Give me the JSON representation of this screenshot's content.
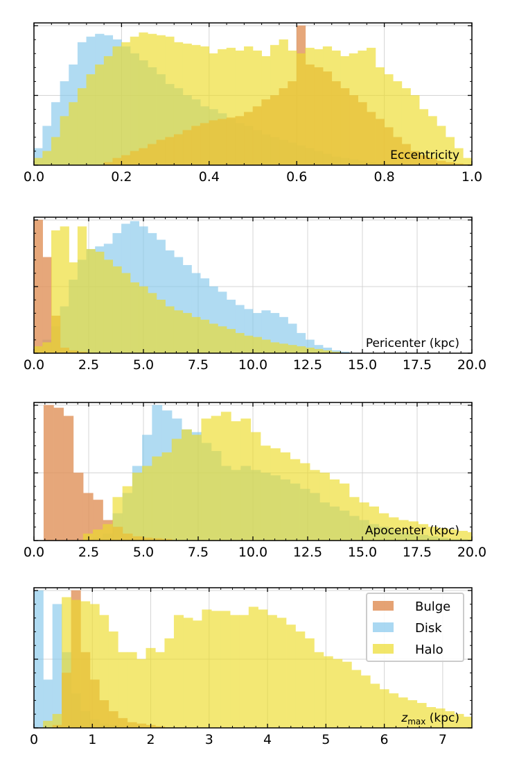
{
  "colors": {
    "Bulge": "#e1925a",
    "Disk": "#86c8ec",
    "Halo": "#eddc2b"
  },
  "legend": {
    "placement": "top-right",
    "entries": [
      "Bulge",
      "Disk",
      "Halo"
    ]
  },
  "chart_data": [
    {
      "type": "bar",
      "panel": "eccentricity",
      "annotation": "Eccentricity",
      "xlim": [
        0.0,
        1.0
      ],
      "xticks": [
        "0.0",
        "0.2",
        "0.4",
        "0.6",
        "0.8",
        "1.0"
      ],
      "xtick_values": [
        0,
        0.2,
        0.4,
        0.6,
        0.8,
        1.0
      ],
      "ymax": 1.0,
      "grid": true,
      "bin_start": 0.0,
      "bin_width": 0.02,
      "series": [
        {
          "name": "Bulge",
          "values": [
            0,
            0,
            0,
            0,
            0,
            0,
            0,
            0,
            0.02,
            0.05,
            0.07,
            0.1,
            0.12,
            0.15,
            0.18,
            0.2,
            0.22,
            0.25,
            0.28,
            0.3,
            0.32,
            0.33,
            0.34,
            0.35,
            0.38,
            0.42,
            0.47,
            0.5,
            0.55,
            0.6,
            1.0,
            0.72,
            0.7,
            0.67,
            0.6,
            0.55,
            0.5,
            0.45,
            0.38,
            0.33,
            0.27,
            0.2,
            0.15,
            0.1,
            0.07,
            0.05,
            0.03,
            0.02,
            0.01,
            0.005
          ]
        },
        {
          "name": "Disk",
          "values": [
            0.12,
            0.28,
            0.45,
            0.6,
            0.72,
            0.88,
            0.92,
            0.94,
            0.93,
            0.9,
            0.85,
            0.8,
            0.75,
            0.7,
            0.65,
            0.58,
            0.55,
            0.5,
            0.47,
            0.42,
            0.4,
            0.37,
            0.33,
            0.3,
            0.28,
            0.25,
            0.22,
            0.2,
            0.18,
            0.16,
            0.14,
            0.12,
            0.1,
            0.08,
            0.06,
            0.05,
            0.04,
            0.03,
            0.02,
            0.015,
            0.01,
            0.01,
            0.008,
            0.005,
            0.004,
            0.003,
            0.002,
            0.001,
            0,
            0
          ]
        },
        {
          "name": "Halo",
          "values": [
            0.05,
            0.1,
            0.2,
            0.35,
            0.45,
            0.55,
            0.65,
            0.72,
            0.78,
            0.85,
            0.88,
            0.92,
            0.95,
            0.94,
            0.93,
            0.92,
            0.88,
            0.87,
            0.86,
            0.85,
            0.8,
            0.83,
            0.84,
            0.82,
            0.85,
            0.82,
            0.78,
            0.86,
            0.9,
            0.82,
            0.8,
            0.84,
            0.83,
            0.85,
            0.82,
            0.78,
            0.8,
            0.82,
            0.84,
            0.7,
            0.65,
            0.6,
            0.55,
            0.5,
            0.4,
            0.35,
            0.28,
            0.2,
            0.12,
            0.05
          ]
        }
      ]
    },
    {
      "type": "bar",
      "panel": "pericenter",
      "annotation": "Pericenter (kpc)",
      "xlim": [
        0.0,
        20.0
      ],
      "xticks": [
        "0.0",
        "2.5",
        "5.0",
        "7.5",
        "10.0",
        "12.5",
        "15.0",
        "17.5",
        "20.0"
      ],
      "xtick_values": [
        0,
        2.5,
        5.0,
        7.5,
        10.0,
        12.5,
        15.0,
        17.5,
        20.0
      ],
      "ymax": 1.0,
      "grid": true,
      "bin_start": 0.0,
      "bin_width": 0.4,
      "series": [
        {
          "name": "Bulge",
          "values": [
            1.0,
            0.72,
            0.28,
            0.04,
            0.02,
            0.01
          ]
        },
        {
          "name": "Disk",
          "values": [
            0.05,
            0.1,
            0.2,
            0.35,
            0.55,
            0.7,
            0.78,
            0.8,
            0.82,
            0.9,
            0.97,
            0.99,
            0.95,
            0.9,
            0.85,
            0.77,
            0.72,
            0.66,
            0.6,
            0.56,
            0.5,
            0.46,
            0.4,
            0.36,
            0.33,
            0.3,
            0.32,
            0.3,
            0.27,
            0.22,
            0.15,
            0.1,
            0.06,
            0.04,
            0.02,
            0.01
          ]
        },
        {
          "name": "Halo",
          "values": [
            0.05,
            0.08,
            0.92,
            0.95,
            0.68,
            0.95,
            0.78,
            0.76,
            0.7,
            0.65,
            0.6,
            0.53,
            0.5,
            0.45,
            0.4,
            0.35,
            0.32,
            0.3,
            0.27,
            0.25,
            0.22,
            0.2,
            0.18,
            0.15,
            0.13,
            0.12,
            0.1,
            0.08,
            0.07,
            0.06,
            0.05,
            0.04,
            0.03,
            0.02,
            0.01
          ]
        }
      ]
    },
    {
      "type": "bar",
      "panel": "apocenter",
      "annotation": "Apocenter (kpc)",
      "xlim": [
        0.0,
        20.0
      ],
      "xticks": [
        "0.0",
        "2.5",
        "5.0",
        "7.5",
        "10.0",
        "12.5",
        "15.0",
        "17.5",
        "20.0"
      ],
      "xtick_values": [
        0,
        2.5,
        5.0,
        7.5,
        10.0,
        12.5,
        15.0,
        17.5,
        20.0
      ],
      "ymax": 1.0,
      "grid": true,
      "bin_start": 0.0,
      "bin_width": 0.45,
      "series": [
        {
          "name": "Bulge",
          "values": [
            0,
            1.0,
            0.98,
            0.92,
            0.5,
            0.35,
            0.3,
            0.15,
            0.1,
            0.05,
            0.03,
            0.02,
            0.015,
            0.01
          ]
        },
        {
          "name": "Disk",
          "values": [
            0,
            0,
            0,
            0,
            0,
            0,
            0.02,
            0.05,
            0.2,
            0.35,
            0.55,
            0.78,
            1.0,
            0.96,
            0.9,
            0.82,
            0.8,
            0.72,
            0.66,
            0.55,
            0.52,
            0.55,
            0.52,
            0.5,
            0.48,
            0.45,
            0.42,
            0.38,
            0.35,
            0.28,
            0.25,
            0.22,
            0.18,
            0.15,
            0.12,
            0.1,
            0.08,
            0.06,
            0.05,
            0.04,
            0.03,
            0.02,
            0.01,
            0.01,
            0.005
          ]
        },
        {
          "name": "Halo",
          "values": [
            0,
            0,
            0,
            0,
            0,
            0.05,
            0.08,
            0.12,
            0.32,
            0.4,
            0.5,
            0.55,
            0.62,
            0.65,
            0.75,
            0.82,
            0.78,
            0.9,
            0.92,
            0.95,
            0.88,
            0.9,
            0.8,
            0.7,
            0.68,
            0.65,
            0.6,
            0.57,
            0.52,
            0.5,
            0.45,
            0.42,
            0.32,
            0.28,
            0.25,
            0.2,
            0.17,
            0.15,
            0.14,
            0.12,
            0.1,
            0.09,
            0.08,
            0.07,
            0.06
          ]
        }
      ]
    },
    {
      "type": "bar",
      "panel": "zmax",
      "annotation": "z",
      "annotation_sub": "max",
      "annotation_suffix": " (kpc)",
      "xlim": [
        0,
        7.5
      ],
      "xticks": [
        "0",
        "1",
        "2",
        "3",
        "4",
        "5",
        "6",
        "7"
      ],
      "xtick_values": [
        0,
        1,
        2,
        3,
        4,
        5,
        6,
        7
      ],
      "ymax": 1.0,
      "grid": true,
      "bin_start": 0.0,
      "bin_width": 0.16,
      "series": [
        {
          "name": "Bulge",
          "values": [
            0,
            0,
            0.02,
            0.4,
            1.0,
            0.55,
            0.35,
            0.2,
            0.12,
            0.07,
            0.04,
            0.03,
            0.02,
            0.01
          ]
        },
        {
          "name": "Disk",
          "values": [
            1.0,
            0.35,
            0.9,
            0.55,
            0.25,
            0.12,
            0.06,
            0.03,
            0.02,
            0.01,
            0.01,
            0,
            0,
            0
          ]
        },
        {
          "name": "Halo",
          "values": [
            0,
            0.05,
            0.1,
            0.95,
            0.93,
            0.92,
            0.9,
            0.82,
            0.7,
            0.55,
            0.55,
            0.5,
            0.58,
            0.55,
            0.65,
            0.82,
            0.8,
            0.78,
            0.86,
            0.85,
            0.85,
            0.82,
            0.82,
            0.88,
            0.86,
            0.82,
            0.8,
            0.75,
            0.7,
            0.65,
            0.55,
            0.52,
            0.5,
            0.48,
            0.42,
            0.38,
            0.32,
            0.28,
            0.25,
            0.22,
            0.2,
            0.18,
            0.15,
            0.14,
            0.12,
            0.1,
            0.08
          ]
        }
      ]
    }
  ]
}
